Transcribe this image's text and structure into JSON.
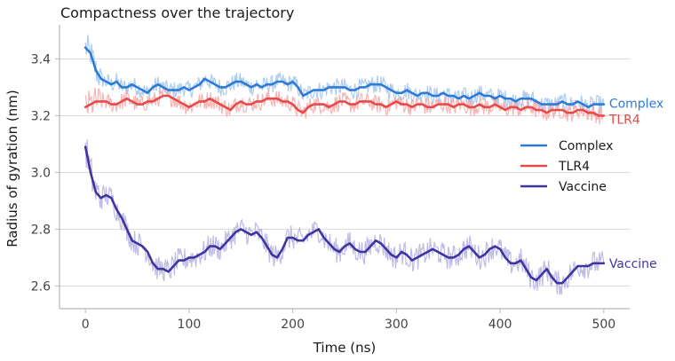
{
  "chart_data": {
    "type": "line",
    "title": "Compactness over the trajectory",
    "xlabel": "Time (ns)",
    "ylabel": "Radius of gyration (nm)",
    "xlim": [
      -25,
      525
    ],
    "ylim": [
      2.52,
      3.52
    ],
    "x_ticks": [
      0,
      100,
      200,
      300,
      400,
      500
    ],
    "x_tick_labels": [
      "0",
      "100",
      "200",
      "300",
      "400",
      "500"
    ],
    "y_ticks": [
      2.6,
      2.8,
      3.0,
      3.2,
      3.4
    ],
    "y_tick_labels": [
      "2.6",
      "2.8",
      "3.0",
      "3.2",
      "3.4"
    ],
    "grid": "horizontal",
    "legend_position": "right",
    "x": [
      0,
      5,
      10,
      15,
      20,
      25,
      30,
      35,
      40,
      45,
      50,
      55,
      60,
      65,
      70,
      75,
      80,
      85,
      90,
      95,
      100,
      105,
      110,
      115,
      120,
      125,
      130,
      135,
      140,
      145,
      150,
      155,
      160,
      165,
      170,
      175,
      180,
      185,
      190,
      195,
      200,
      205,
      210,
      215,
      220,
      225,
      230,
      235,
      240,
      245,
      250,
      255,
      260,
      265,
      270,
      275,
      280,
      285,
      290,
      295,
      300,
      305,
      310,
      315,
      320,
      325,
      330,
      335,
      340,
      345,
      350,
      355,
      360,
      365,
      370,
      375,
      380,
      385,
      390,
      395,
      400,
      405,
      410,
      415,
      420,
      425,
      430,
      435,
      440,
      445,
      450,
      455,
      460,
      465,
      470,
      475,
      480,
      485,
      490,
      495,
      500
    ],
    "series": [
      {
        "name": "Complex",
        "color": "#2e7bd6",
        "band_color": "#9fc3ee",
        "end_label": "Complex",
        "values": [
          3.44,
          3.42,
          3.36,
          3.33,
          3.32,
          3.31,
          3.32,
          3.3,
          3.3,
          3.31,
          3.3,
          3.29,
          3.28,
          3.3,
          3.31,
          3.3,
          3.29,
          3.29,
          3.29,
          3.3,
          3.29,
          3.3,
          3.31,
          3.33,
          3.32,
          3.31,
          3.3,
          3.3,
          3.31,
          3.32,
          3.32,
          3.31,
          3.3,
          3.31,
          3.3,
          3.31,
          3.31,
          3.32,
          3.32,
          3.31,
          3.32,
          3.3,
          3.27,
          3.28,
          3.29,
          3.29,
          3.29,
          3.3,
          3.3,
          3.3,
          3.3,
          3.29,
          3.29,
          3.3,
          3.3,
          3.31,
          3.31,
          3.31,
          3.3,
          3.29,
          3.28,
          3.28,
          3.29,
          3.28,
          3.27,
          3.28,
          3.28,
          3.27,
          3.27,
          3.28,
          3.27,
          3.27,
          3.26,
          3.27,
          3.26,
          3.27,
          3.28,
          3.27,
          3.27,
          3.26,
          3.27,
          3.26,
          3.26,
          3.25,
          3.26,
          3.26,
          3.26,
          3.25,
          3.24,
          3.24,
          3.24,
          3.24,
          3.25,
          3.24,
          3.24,
          3.25,
          3.24,
          3.23,
          3.24,
          3.24,
          3.24
        ]
      },
      {
        "name": "TLR4",
        "color": "#e84a4a",
        "band_color": "#f4a8a8",
        "end_label": "TLR4",
        "values": [
          3.23,
          3.24,
          3.25,
          3.25,
          3.25,
          3.24,
          3.24,
          3.25,
          3.26,
          3.25,
          3.24,
          3.24,
          3.25,
          3.25,
          3.26,
          3.27,
          3.27,
          3.26,
          3.25,
          3.24,
          3.23,
          3.24,
          3.25,
          3.25,
          3.26,
          3.25,
          3.24,
          3.23,
          3.22,
          3.24,
          3.25,
          3.24,
          3.24,
          3.25,
          3.25,
          3.26,
          3.26,
          3.26,
          3.25,
          3.25,
          3.24,
          3.22,
          3.21,
          3.23,
          3.24,
          3.24,
          3.24,
          3.23,
          3.24,
          3.25,
          3.25,
          3.24,
          3.24,
          3.25,
          3.25,
          3.25,
          3.24,
          3.24,
          3.23,
          3.24,
          3.25,
          3.24,
          3.24,
          3.23,
          3.24,
          3.24,
          3.23,
          3.23,
          3.24,
          3.24,
          3.24,
          3.23,
          3.24,
          3.24,
          3.23,
          3.23,
          3.24,
          3.23,
          3.23,
          3.24,
          3.23,
          3.22,
          3.23,
          3.23,
          3.22,
          3.23,
          3.23,
          3.22,
          3.22,
          3.21,
          3.22,
          3.22,
          3.22,
          3.21,
          3.21,
          3.22,
          3.22,
          3.21,
          3.21,
          3.2,
          3.2
        ]
      },
      {
        "name": "Vaccine",
        "color": "#3f35a0",
        "band_color": "#b5aee2",
        "end_label": "Vaccine",
        "values": [
          3.09,
          3.0,
          2.93,
          2.91,
          2.92,
          2.91,
          2.87,
          2.84,
          2.8,
          2.76,
          2.75,
          2.74,
          2.72,
          2.68,
          2.66,
          2.66,
          2.65,
          2.67,
          2.69,
          2.69,
          2.7,
          2.7,
          2.71,
          2.72,
          2.74,
          2.74,
          2.73,
          2.75,
          2.77,
          2.79,
          2.8,
          2.79,
          2.78,
          2.79,
          2.77,
          2.74,
          2.71,
          2.7,
          2.73,
          2.77,
          2.77,
          2.76,
          2.76,
          2.78,
          2.79,
          2.8,
          2.77,
          2.75,
          2.73,
          2.72,
          2.74,
          2.75,
          2.73,
          2.72,
          2.72,
          2.74,
          2.76,
          2.75,
          2.73,
          2.71,
          2.7,
          2.72,
          2.71,
          2.69,
          2.7,
          2.71,
          2.72,
          2.73,
          2.72,
          2.71,
          2.7,
          2.7,
          2.71,
          2.73,
          2.74,
          2.72,
          2.7,
          2.71,
          2.73,
          2.74,
          2.73,
          2.7,
          2.68,
          2.68,
          2.69,
          2.66,
          2.63,
          2.62,
          2.64,
          2.66,
          2.63,
          2.61,
          2.61,
          2.63,
          2.65,
          2.67,
          2.67,
          2.67,
          2.68,
          2.68,
          2.68
        ]
      }
    ]
  }
}
